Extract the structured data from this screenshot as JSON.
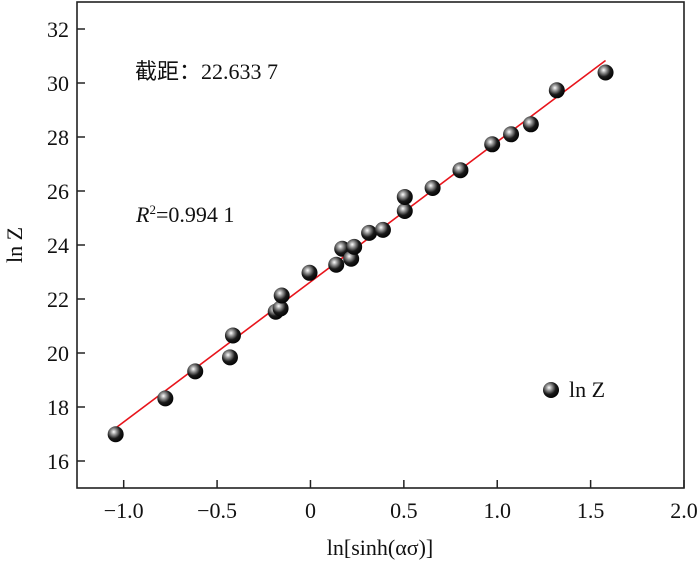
{
  "chart_data": {
    "type": "scatter",
    "title": "",
    "xlabel": "ln[sinh(ασ)]",
    "ylabel": "ln Z",
    "xlim": [
      -1.25,
      2.0
    ],
    "ylim": [
      15,
      33
    ],
    "xticks": [
      -1.0,
      -0.5,
      0,
      0.5,
      1.0,
      1.5,
      2.0
    ],
    "xtick_labels": [
      "−1.0",
      "−0.5",
      "0",
      "0.5",
      "1.0",
      "1.5",
      "2.0"
    ],
    "yticks": [
      16,
      18,
      20,
      22,
      24,
      26,
      28,
      30,
      32
    ],
    "ytick_labels": [
      "16",
      "18",
      "20",
      "22",
      "24",
      "26",
      "28",
      "30",
      "32"
    ],
    "grid": false,
    "legend": {
      "placement": "bottom-right",
      "entries": [
        "ln Z"
      ]
    },
    "series": [
      {
        "name": "ln Z",
        "x": [
          -1.043,
          -0.777,
          -0.617,
          -0.431,
          -0.415,
          -0.186,
          -0.16,
          -0.154,
          -0.005,
          0.138,
          0.17,
          0.218,
          0.234,
          0.314,
          0.388,
          0.505,
          0.505,
          0.654,
          0.803,
          0.973,
          1.074,
          1.18,
          1.319,
          1.58
        ],
        "y": [
          16.99,
          18.32,
          19.32,
          19.84,
          20.65,
          21.53,
          21.65,
          22.13,
          22.97,
          23.27,
          23.86,
          23.49,
          23.93,
          24.45,
          24.56,
          25.26,
          25.78,
          26.11,
          26.77,
          27.73,
          28.1,
          28.47,
          29.73,
          30.39
        ]
      }
    ],
    "fit": {
      "intercept": 22.6337,
      "slope": 5.19,
      "x_range": [
        -1.05,
        1.58
      ],
      "color": "#e8141b"
    },
    "annotations": {
      "intercept_label": "截距：22.633 7",
      "r2_prefix": "R",
      "r2_sup": "2",
      "r2_value": "=0.994 1"
    }
  }
}
